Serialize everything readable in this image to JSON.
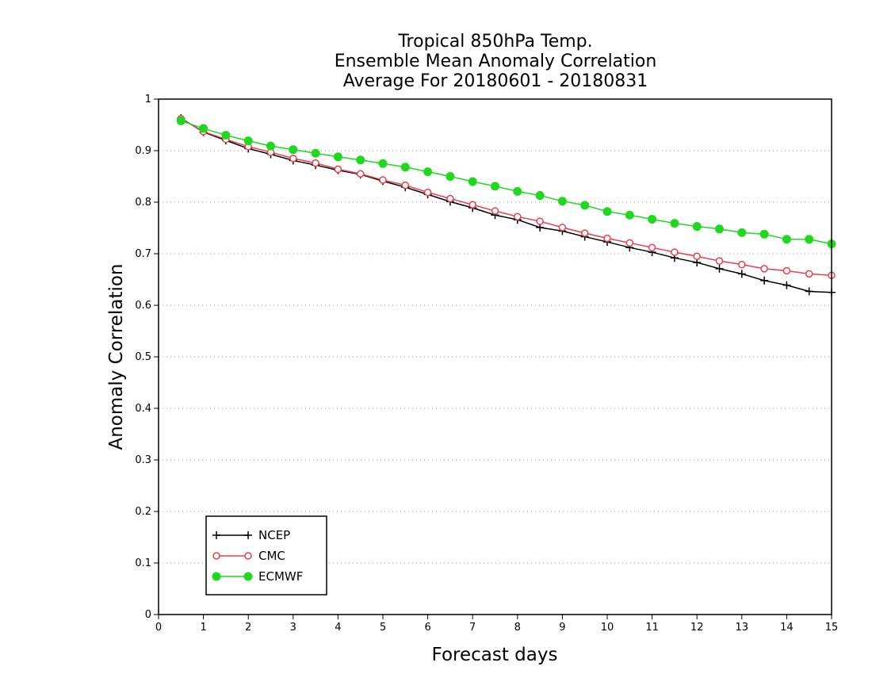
{
  "chart_data": {
    "type": "line",
    "title": [
      "Tropical 850hPa Temp.",
      "Ensemble Mean Anomaly Correlation",
      "Average For 20180601 - 20180831"
    ],
    "xlabel": "Forecast days",
    "ylabel": "Anomaly Correlation",
    "xlim": [
      0,
      15
    ],
    "ylim": [
      0,
      1
    ],
    "xticks": [
      "0",
      "1",
      "2",
      "3",
      "4",
      "5",
      "6",
      "7",
      "8",
      "9",
      "10",
      "11",
      "12",
      "13",
      "14",
      "15"
    ],
    "yticks": [
      "0",
      "0.1",
      "0.2",
      "0.3",
      "0.4",
      "0.5",
      "0.6",
      "0.7",
      "0.8",
      "0.9",
      "1"
    ],
    "grid": true,
    "legend_position": "bottom-left",
    "x": [
      0.5,
      1,
      1.5,
      2,
      2.5,
      3,
      3.5,
      4,
      4.5,
      5,
      5.5,
      6,
      6.5,
      7,
      7.5,
      8,
      8.5,
      9,
      9.5,
      10,
      10.5,
      11,
      11.5,
      12,
      12.5,
      13,
      13.5,
      14,
      14.5,
      15
    ],
    "series": [
      {
        "name": "NCEP",
        "color": "#000000",
        "marker": "plus",
        "values": [
          0.963,
          0.936,
          0.92,
          0.904,
          0.893,
          0.881,
          0.872,
          0.862,
          0.854,
          0.841,
          0.829,
          0.815,
          0.801,
          0.789,
          0.775,
          0.766,
          0.751,
          0.744,
          0.733,
          0.723,
          0.712,
          0.703,
          0.692,
          0.683,
          0.671,
          0.661,
          0.648,
          0.639,
          0.627,
          0.625
        ]
      },
      {
        "name": "CMC",
        "color": "#e8404a",
        "marker": "open-circle",
        "values": [
          0.962,
          0.937,
          0.922,
          0.908,
          0.897,
          0.885,
          0.876,
          0.864,
          0.855,
          0.843,
          0.833,
          0.819,
          0.807,
          0.795,
          0.783,
          0.772,
          0.763,
          0.751,
          0.74,
          0.73,
          0.721,
          0.712,
          0.703,
          0.695,
          0.686,
          0.679,
          0.671,
          0.667,
          0.661,
          0.658
        ]
      },
      {
        "name": "ECMWF",
        "color": "#1fd81f",
        "marker": "filled-circle",
        "values": [
          0.958,
          0.943,
          0.93,
          0.919,
          0.909,
          0.902,
          0.895,
          0.888,
          0.882,
          0.875,
          0.868,
          0.859,
          0.85,
          0.84,
          0.831,
          0.821,
          0.813,
          0.802,
          0.794,
          0.782,
          0.775,
          0.767,
          0.759,
          0.753,
          0.748,
          0.741,
          0.738,
          0.728,
          0.728,
          0.719
        ]
      }
    ]
  }
}
